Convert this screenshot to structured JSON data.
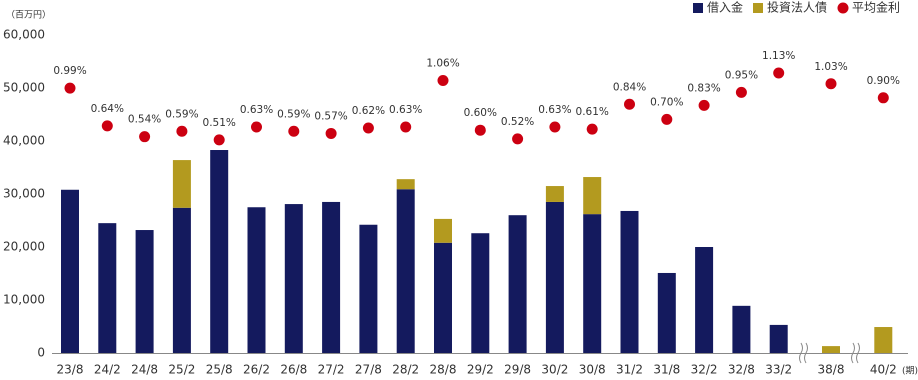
{
  "chart_data": {
    "type": "bar",
    "stacked": true,
    "y_unit_label": "（百万円）",
    "x_unit_label": "(期)",
    "categories": [
      "23/8",
      "24/2",
      "24/8",
      "25/2",
      "25/8",
      "26/2",
      "26/8",
      "27/2",
      "27/8",
      "28/2",
      "28/8",
      "29/2",
      "29/8",
      "30/2",
      "30/8",
      "31/2",
      "31/8",
      "32/2",
      "32/8",
      "33/2",
      "38/8",
      "40/2"
    ],
    "series": [
      {
        "name": "借入金",
        "type": "bar",
        "color": "#141a5e",
        "values": [
          30800,
          24500,
          23200,
          27400,
          38300,
          27500,
          28100,
          28500,
          24200,
          30900,
          20800,
          22600,
          26000,
          28500,
          26200,
          26800,
          15100,
          20000,
          8900,
          5300,
          0,
          0
        ]
      },
      {
        "name": "投資法人債",
        "type": "bar",
        "color": "#b39a1f",
        "values": [
          0,
          0,
          0,
          9000,
          0,
          0,
          0,
          0,
          0,
          1900,
          4500,
          0,
          0,
          3000,
          7000,
          0,
          0,
          0,
          0,
          0,
          1300,
          4900
        ]
      },
      {
        "name": "平均金利",
        "type": "dot",
        "color": "#cc0011",
        "values": [
          0.99,
          0.64,
          0.54,
          0.59,
          0.51,
          0.63,
          0.59,
          0.57,
          0.62,
          0.63,
          1.06,
          0.6,
          0.52,
          0.63,
          0.61,
          0.84,
          0.7,
          0.83,
          0.95,
          1.13,
          1.03,
          0.9
        ],
        "value_labels": [
          "0.99%",
          "0.64%",
          "0.54%",
          "0.59%",
          "0.51%",
          "0.63%",
          "0.59%",
          "0.57%",
          "0.62%",
          "0.63%",
          "1.06%",
          "0.60%",
          "0.52%",
          "0.63%",
          "0.61%",
          "0.84%",
          "0.70%",
          "0.83%",
          "0.95%",
          "1.13%",
          "1.03%",
          "0.90%"
        ]
      }
    ],
    "ylim": [
      0,
      60000
    ],
    "yticks": [
      0,
      {
        "value": 10000,
        "label": "10,000"
      },
      {
        "value": 20000,
        "label": "20,000"
      },
      {
        "value": 30000,
        "label": "30,000"
      },
      {
        "value": 40000,
        "label": "40,000"
      },
      {
        "value": 50000,
        "label": "50,000"
      },
      {
        "value": 60000,
        "label": "60,000"
      }
    ],
    "legend": "top-right"
  }
}
